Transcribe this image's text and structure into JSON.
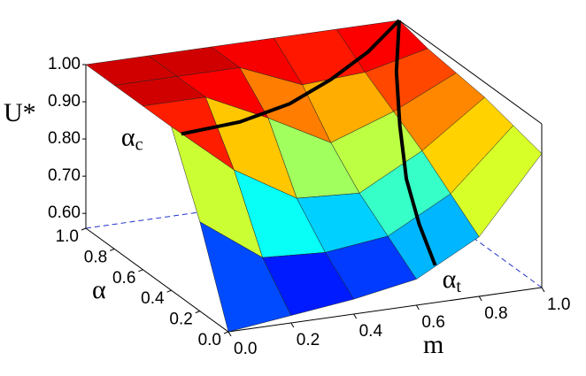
{
  "chart_data": {
    "type": "surface",
    "zlabel": "U*",
    "xlabel": "α",
    "ylabel": "m",
    "zlim": [
      0.56,
      1.0
    ],
    "zticks": [
      {
        "value": 0.6,
        "label": "0.60"
      },
      {
        "value": 0.7,
        "label": "0.70"
      },
      {
        "value": 0.8,
        "label": "0.80"
      },
      {
        "value": 0.9,
        "label": "0.90"
      },
      {
        "value": 1.0,
        "label": "1.00"
      }
    ],
    "xlim": [
      0,
      1
    ],
    "xticks": [
      {
        "value": 0,
        "label": "0.0"
      },
      {
        "value": 0.2,
        "label": "0.2"
      },
      {
        "value": 0.4,
        "label": "0.4"
      },
      {
        "value": 0.6,
        "label": "0.6"
      },
      {
        "value": 0.8,
        "label": "0.8"
      },
      {
        "value": 1,
        "label": "1.0"
      }
    ],
    "ylim": [
      0,
      1
    ],
    "yticks": [
      {
        "value": 0,
        "label": "0.0"
      },
      {
        "value": 0.2,
        "label": "0.2"
      },
      {
        "value": 0.4,
        "label": "0.4"
      },
      {
        "value": 0.6,
        "label": "0.6"
      },
      {
        "value": 0.8,
        "label": "0.8"
      },
      {
        "value": 1,
        "label": "1.0"
      }
    ],
    "alpha": [
      0,
      0.2,
      0.4,
      0.6,
      0.8,
      1.0
    ],
    "m": [
      0,
      0.2,
      0.4,
      0.6,
      0.8,
      1.0
    ],
    "u": [
      [
        0.56,
        0.58,
        0.6,
        0.63,
        0.72,
        0.92
      ],
      [
        0.8,
        0.68,
        0.67,
        0.69,
        0.78,
        0.94
      ],
      [
        1.0,
        0.86,
        0.76,
        0.75,
        0.84,
        0.96
      ],
      [
        1.0,
        1.0,
        0.92,
        0.83,
        0.89,
        0.97
      ],
      [
        1.0,
        1.0,
        1.0,
        0.93,
        0.94,
        0.98
      ],
      [
        1.0,
        1.0,
        1.0,
        1.0,
        1.0,
        1.0
      ]
    ],
    "curves": [
      {
        "symbol": "α",
        "subscript": "c",
        "alpha": [
          0.33,
          0.36,
          0.45,
          0.6,
          0.78,
          1.0
        ],
        "m": [
          0,
          0.2,
          0.4,
          0.6,
          0.8,
          1.0
        ],
        "u": [
          1,
          1,
          1,
          1,
          1,
          1
        ]
      },
      {
        "symbol": "α",
        "subscript": "t",
        "alpha": [
          1.0,
          0.8,
          0.6,
          0.4,
          0.2,
          0
        ],
        "m": [
          1.0,
          0.9,
          0.82,
          0.75,
          0.7,
          0.66
        ],
        "u": [
          1.0,
          0.93,
          0.85,
          0.77,
          0.71,
          0.66
        ]
      }
    ]
  }
}
